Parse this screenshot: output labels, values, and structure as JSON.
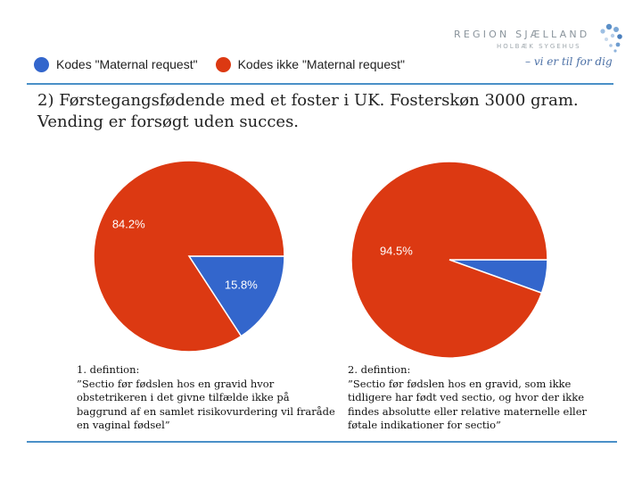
{
  "logo": {
    "main": "REGION SJÆLLAND",
    "sub": "HOLBÆK SYGEHUS",
    "tagline": "– vi er til for dig"
  },
  "colors": {
    "blue": "#3366cc",
    "red": "#dc3912",
    "rule": "#4a90c8"
  },
  "legend": [
    {
      "label": "Kodes \"Maternal request\"",
      "color": "#3366cc"
    },
    {
      "label": "Kodes ikke \"Maternal request\"",
      "color": "#dc3912"
    }
  ],
  "heading": "2) Førstegangsfødende med et foster i UK. Fosterskøn 3000 gram. Vending er forsøgt uden succes.",
  "chart_data": [
    {
      "type": "pie",
      "title": "",
      "slices": [
        {
          "name": "Kodes \"Maternal request\"",
          "value": 15.8,
          "label": "15.8%",
          "color": "#3366cc"
        },
        {
          "name": "Kodes ikke \"Maternal request\"",
          "value": 84.2,
          "label": "84.2%",
          "color": "#dc3912"
        }
      ]
    },
    {
      "type": "pie",
      "title": "",
      "slices": [
        {
          "name": "Kodes \"Maternal request\"",
          "value": 5.5,
          "label": "",
          "color": "#3366cc"
        },
        {
          "name": "Kodes ikke \"Maternal request\"",
          "value": 94.5,
          "label": "94.5%",
          "color": "#dc3912"
        }
      ]
    }
  ],
  "definitions": [
    {
      "title": "1. defintion:",
      "body": "”Sectio før fødslen hos en gravid hvor obstetrikeren i det givne tilfælde ikke på baggrund af en samlet risikovurdering vil fraråde en vaginal fødsel”"
    },
    {
      "title": "2. defintion:",
      "body": "”Sectio før fødslen hos en gravid, som ikke tidligere har født ved sectio, og hvor der ikke findes absolutte eller relative maternelle eller føtale indikationer for sectio”"
    }
  ]
}
